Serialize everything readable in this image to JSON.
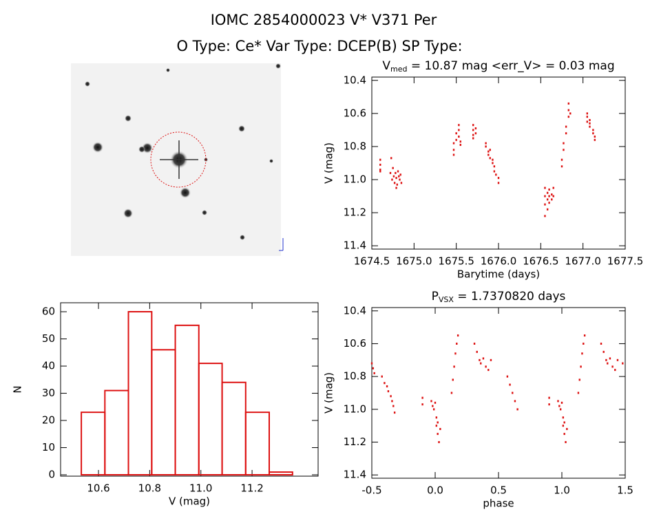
{
  "header": {
    "title": "IOMC 2854000023    V* V371 Per",
    "subtitle": "O Type: Ce*  Var Type: DCEP(B)  SP Type:"
  },
  "chart_data": [
    {
      "type": "scatter",
      "title": {
        "main": "V",
        "sub": "med",
        "rest": " = 10.87 mag <err_V> = 0.03 mag"
      },
      "x_label": "Barytime (days)",
      "y_label": "V (mag)",
      "color": "#dd1111",
      "xlim": [
        1674.5,
        1677.5
      ],
      "ylim": [
        11.42,
        10.38
      ],
      "xticks": [
        1674.5,
        {
          "value": 1675,
          "label": "1675.0"
        },
        1675.5,
        {
          "value": 1676,
          "label": "1676.0"
        },
        1676.5,
        {
          "value": 1677,
          "label": "1677.0"
        },
        1677.5
      ],
      "yticks": [
        10.4,
        10.6,
        10.8,
        {
          "value": 11,
          "label": "11.0"
        },
        11.2,
        11.4
      ],
      "x": [
        1674.6,
        1674.6,
        1674.6,
        1674.6,
        1674.72,
        1674.74,
        1674.75,
        1674.76,
        1674.77,
        1674.78,
        1674.79,
        1674.8,
        1674.81,
        1674.82,
        1674.83,
        1674.84,
        1674.85,
        1674.73,
        1674.79,
        1675.47,
        1675.47,
        1675.47,
        1675.5,
        1675.5,
        1675.53,
        1675.53,
        1675.53,
        1675.55,
        1675.55,
        1675.7,
        1675.7,
        1675.7,
        1675.7,
        1675.73,
        1675.73,
        1675.85,
        1675.85,
        1675.88,
        1675.88,
        1675.9,
        1675.9,
        1675.93,
        1675.93,
        1675.95,
        1675.95,
        1675.97,
        1676.0,
        1676.0,
        1676.55,
        1676.55,
        1676.55,
        1676.55,
        1676.58,
        1676.58,
        1676.58,
        1676.6,
        1676.6,
        1676.6,
        1676.63,
        1676.63,
        1676.65,
        1676.65,
        1676.75,
        1676.75,
        1676.77,
        1676.77,
        1676.8,
        1676.8,
        1676.83,
        1676.83,
        1676.83,
        1676.85,
        1677.05,
        1677.05,
        1677.05,
        1677.08,
        1677.08,
        1677.08,
        1677.12,
        1677.12,
        1677.14,
        1677.14
      ],
      "values": [
        10.88,
        10.91,
        10.94,
        10.95,
        10.96,
        11.0,
        10.93,
        10.98,
        11.02,
        10.96,
        10.99,
        11.03,
        10.95,
        10.98,
        11.0,
        10.97,
        11.02,
        10.87,
        11.05,
        10.82,
        10.85,
        10.78,
        10.76,
        10.72,
        10.7,
        10.67,
        10.74,
        10.79,
        10.77,
        10.67,
        10.7,
        10.73,
        10.75,
        10.69,
        10.72,
        10.78,
        10.8,
        10.83,
        10.85,
        10.82,
        10.87,
        10.88,
        10.9,
        10.92,
        10.95,
        10.97,
        10.99,
        11.02,
        11.05,
        11.1,
        11.15,
        11.22,
        11.08,
        11.12,
        11.18,
        11.1,
        11.06,
        11.14,
        11.09,
        11.12,
        11.05,
        11.1,
        10.92,
        10.88,
        10.82,
        10.78,
        10.72,
        10.68,
        10.62,
        10.58,
        10.54,
        10.6,
        10.62,
        10.6,
        10.65,
        10.66,
        10.68,
        10.64,
        10.7,
        10.72,
        10.74,
        10.76
      ]
    },
    {
      "type": "histogram",
      "x_label": "V (mag)",
      "y_label": "N",
      "color": "#dd1111",
      "xlim": [
        10.452,
        11.458
      ],
      "ylim": [
        -0.5,
        63.3
      ],
      "xticks": [
        10.6,
        10.8,
        {
          "value": 11,
          "label": "11.0"
        },
        11.2
      ],
      "yticks": [
        0,
        10,
        20,
        30,
        40,
        50,
        60
      ],
      "bins": [
        10.533,
        10.625,
        10.717,
        10.808,
        10.9,
        10.992,
        11.083,
        11.175,
        11.267,
        11.358
      ],
      "values": [
        23,
        31,
        60,
        46,
        55,
        41,
        34,
        23,
        1
      ]
    },
    {
      "type": "scatter",
      "title": {
        "main": "P",
        "sub": "VSX",
        "rest": " = 1.7370820 days"
      },
      "x_label": "phase",
      "y_label": "V (mag)",
      "color": "#dd1111",
      "xlim": [
        -0.5,
        1.5
      ],
      "ylim": [
        11.42,
        10.38
      ],
      "xticks": [
        -0.5,
        {
          "value": 0,
          "label": "0.0"
        },
        0.5,
        {
          "value": 1,
          "label": "1.0"
        },
        1.5
      ],
      "yticks": [
        10.4,
        10.6,
        10.8,
        {
          "value": 11,
          "label": "11.0"
        },
        11.2,
        11.4
      ],
      "x": [
        -0.5,
        -0.49,
        -0.48,
        -0.42,
        -0.4,
        -0.38,
        -0.37,
        -0.35,
        -0.34,
        -0.33,
        -0.32,
        -0.1,
        -0.1,
        -0.03,
        -0.02,
        -0.01,
        0,
        0.01,
        0.02,
        0.03,
        0.04,
        0.01,
        0.02,
        0.13,
        0.14,
        0.15,
        0.16,
        0.17,
        0.18,
        0.31,
        0.33,
        0.35,
        0.36,
        0.38,
        0.4,
        0.42,
        0.44,
        0.57,
        0.59,
        0.61,
        0.63,
        0.65,
        0.9,
        0.9,
        0.97,
        0.98,
        0.99,
        1.0,
        1.01,
        1.02,
        1.03,
        1.04,
        1.01,
        1.02,
        1.13,
        1.14,
        1.15,
        1.16,
        1.17,
        1.18,
        1.31,
        1.33,
        1.35,
        1.36,
        1.38,
        1.4,
        1.42,
        1.44,
        1.48
      ],
      "values": [
        10.72,
        10.75,
        10.78,
        10.8,
        10.84,
        10.86,
        10.89,
        10.92,
        10.95,
        10.98,
        11.02,
        10.93,
        10.97,
        10.95,
        10.98,
        11.0,
        10.96,
        11.1,
        11.15,
        11.2,
        11.12,
        11.05,
        11.08,
        10.9,
        10.82,
        10.74,
        10.66,
        10.6,
        10.55,
        10.6,
        10.65,
        10.7,
        10.72,
        10.69,
        10.74,
        10.76,
        10.7,
        10.8,
        10.85,
        10.9,
        10.95,
        11.0,
        10.93,
        10.97,
        10.95,
        10.98,
        11.0,
        10.96,
        11.1,
        11.15,
        11.2,
        11.12,
        11.05,
        11.08,
        10.9,
        10.82,
        10.74,
        10.66,
        10.6,
        10.55,
        10.6,
        10.65,
        10.7,
        10.72,
        10.69,
        10.74,
        10.76,
        10.7,
        10.72
      ]
    }
  ]
}
